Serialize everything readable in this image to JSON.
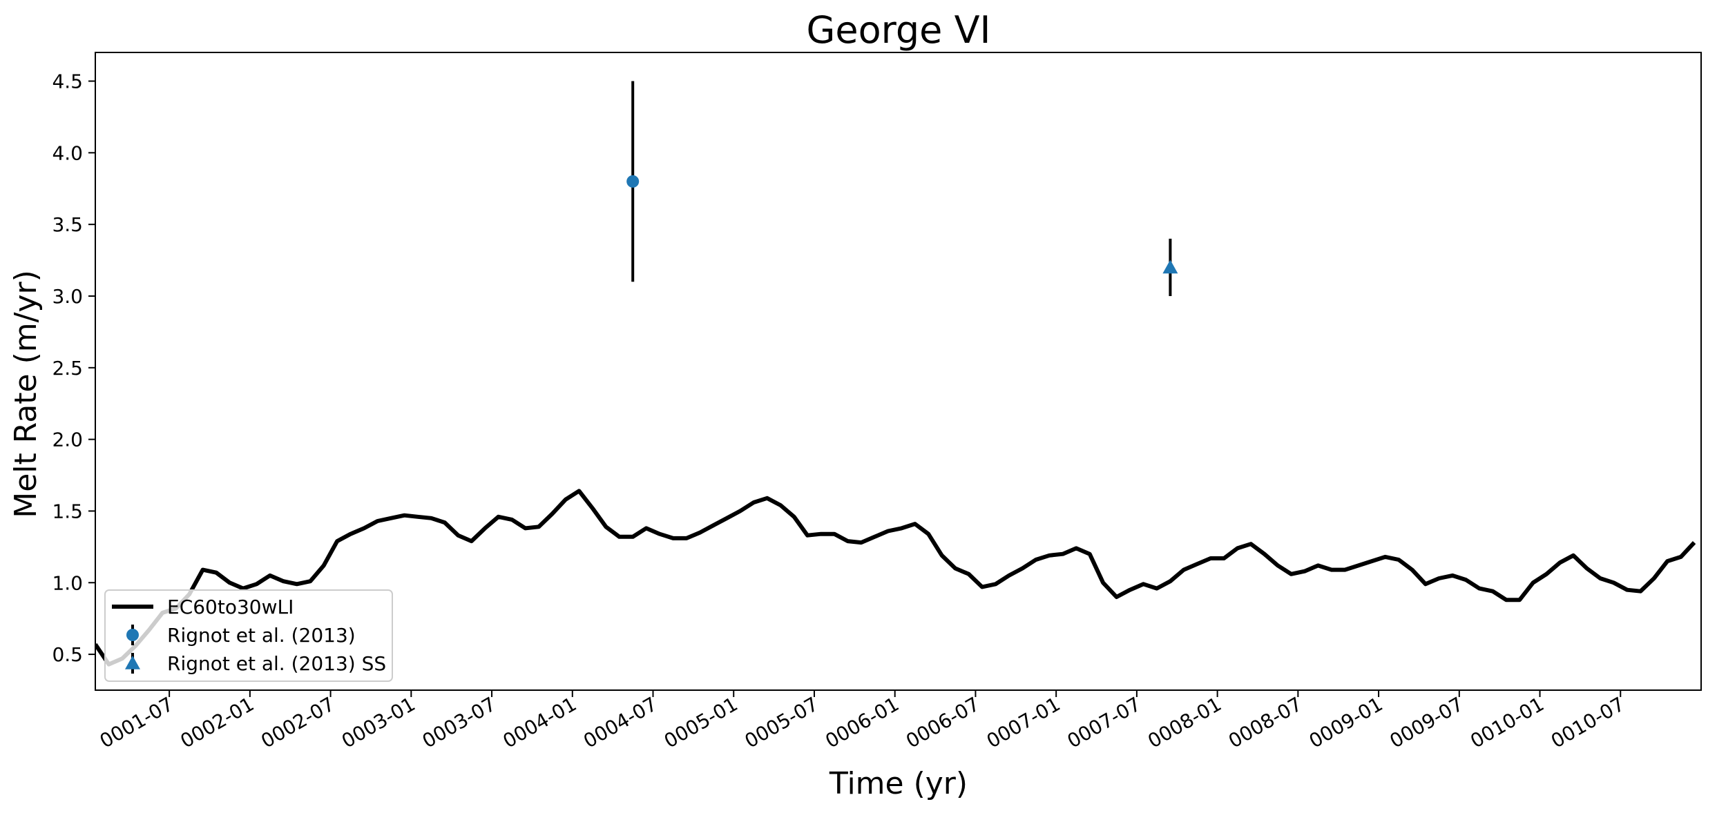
{
  "chart_data": {
    "type": "line",
    "title": "George VI",
    "xlabel": "Time (yr)",
    "ylabel": "Melt Rate (m/yr)",
    "xlim": [
      "0001-01-16",
      "0011-01-01"
    ],
    "ylim": [
      0.25,
      4.7
    ],
    "grid": false,
    "legend_position": "lower-left",
    "x_ticks": [
      "0001-07",
      "0002-01",
      "0002-07",
      "0003-01",
      "0003-07",
      "0004-01",
      "0004-07",
      "0005-01",
      "0005-07",
      "0006-01",
      "0006-07",
      "0007-01",
      "0007-07",
      "0008-01",
      "0008-07",
      "0009-01",
      "0009-07",
      "0010-01",
      "0010-07"
    ],
    "y_ticks": [
      "0.5",
      "1.0",
      "1.5",
      "2.0",
      "2.5",
      "3.0",
      "3.5",
      "4.0",
      "4.5"
    ],
    "y_tick_values": [
      0.5,
      1.0,
      1.5,
      2.0,
      2.5,
      3.0,
      3.5,
      4.0,
      4.5
    ],
    "series": [
      {
        "name": "EC60to30wLI",
        "kind": "line",
        "color": "#000000",
        "x": [
          "0001-01",
          "0001-02",
          "0001-03",
          "0001-04",
          "0001-05",
          "0001-06",
          "0001-07",
          "0001-08",
          "0001-09",
          "0001-10",
          "0001-11",
          "0001-12",
          "0002-01",
          "0002-02",
          "0002-03",
          "0002-04",
          "0002-05",
          "0002-06",
          "0002-07",
          "0002-08",
          "0002-09",
          "0002-10",
          "0002-11",
          "0002-12",
          "0003-01",
          "0003-02",
          "0003-03",
          "0003-04",
          "0003-05",
          "0003-06",
          "0003-07",
          "0003-08",
          "0003-09",
          "0003-10",
          "0003-11",
          "0003-12",
          "0004-01",
          "0004-02",
          "0004-03",
          "0004-04",
          "0004-05",
          "0004-06",
          "0004-07",
          "0004-08",
          "0004-09",
          "0004-10",
          "0004-11",
          "0004-12",
          "0005-01",
          "0005-02",
          "0005-03",
          "0005-04",
          "0005-05",
          "0005-06",
          "0005-07",
          "0005-08",
          "0005-09",
          "0005-10",
          "0005-11",
          "0005-12",
          "0006-01",
          "0006-02",
          "0006-03",
          "0006-04",
          "0006-05",
          "0006-06",
          "0006-07",
          "0006-08",
          "0006-09",
          "0006-10",
          "0006-11",
          "0006-12",
          "0007-01",
          "0007-02",
          "0007-03",
          "0007-04",
          "0007-05",
          "0007-06",
          "0007-07",
          "0007-08",
          "0007-09",
          "0007-10",
          "0007-11",
          "0007-12",
          "0008-01",
          "0008-02",
          "0008-03",
          "0008-04",
          "0008-05",
          "0008-06",
          "0008-07",
          "0008-08",
          "0008-09",
          "0008-10",
          "0008-11",
          "0008-12",
          "0009-01",
          "0009-02",
          "0009-03",
          "0009-04",
          "0009-05",
          "0009-06",
          "0009-07",
          "0009-08",
          "0009-09",
          "0009-10",
          "0009-11",
          "0009-12",
          "0010-01",
          "0010-02",
          "0010-03",
          "0010-04",
          "0010-05",
          "0010-06",
          "0010-07",
          "0010-08",
          "0010-09",
          "0010-10",
          "0010-11",
          "0010-12"
        ],
        "y": [
          0.57,
          0.43,
          0.47,
          0.56,
          0.67,
          0.79,
          0.82,
          0.92,
          1.09,
          1.07,
          1.0,
          0.96,
          0.99,
          1.05,
          1.01,
          0.99,
          1.01,
          1.12,
          1.29,
          1.34,
          1.38,
          1.43,
          1.45,
          1.47,
          1.46,
          1.45,
          1.42,
          1.33,
          1.29,
          1.38,
          1.46,
          1.44,
          1.38,
          1.39,
          1.48,
          1.58,
          1.64,
          1.52,
          1.39,
          1.32,
          1.32,
          1.38,
          1.34,
          1.31,
          1.31,
          1.35,
          1.4,
          1.45,
          1.5,
          1.56,
          1.59,
          1.54,
          1.46,
          1.33,
          1.34,
          1.34,
          1.29,
          1.28,
          1.32,
          1.36,
          1.38,
          1.41,
          1.34,
          1.19,
          1.1,
          1.06,
          0.97,
          0.99,
          1.05,
          1.1,
          1.16,
          1.19,
          1.2,
          1.24,
          1.2,
          1.0,
          0.9,
          0.95,
          0.99,
          0.96,
          1.01,
          1.09,
          1.13,
          1.17,
          1.17,
          1.24,
          1.27,
          1.2,
          1.12,
          1.06,
          1.08,
          1.12,
          1.09,
          1.09,
          1.12,
          1.15,
          1.18,
          1.16,
          1.09,
          0.99,
          1.03,
          1.05,
          1.02,
          0.96,
          0.94,
          0.88,
          0.88,
          1.0,
          1.06,
          1.14,
          1.19,
          1.1,
          1.03,
          1.0,
          0.95,
          0.94,
          1.03,
          1.15,
          1.18,
          1.28
        ]
      },
      {
        "name": "Rignot et al. (2013)",
        "kind": "errorbar",
        "marker": "circle",
        "color": "#1f77b4",
        "x": [
          "0004-05"
        ],
        "y": [
          3.8
        ],
        "yerr": [
          0.7
        ]
      },
      {
        "name": "Rignot et al. (2013) SS",
        "kind": "errorbar",
        "marker": "triangle",
        "color": "#1f77b4",
        "x": [
          "0007-09"
        ],
        "y": [
          3.2
        ],
        "yerr": [
          0.2
        ]
      }
    ]
  }
}
